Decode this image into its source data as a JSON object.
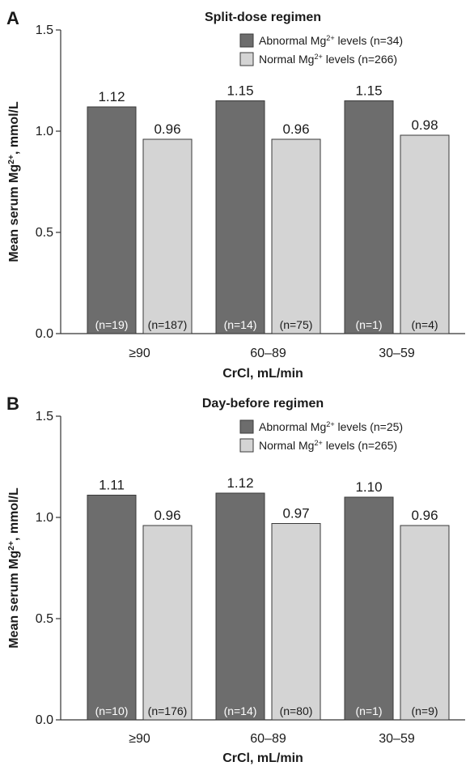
{
  "chart_data": [
    {
      "panel": "A",
      "type": "bar",
      "title": "Split-dose regimen",
      "xlabel": "CrCl, mL/min",
      "ylabel": "Mean serum Mg²⁺, mmol/L",
      "ylim": [
        0,
        1.5
      ],
      "yticks": [
        "0.0",
        "0.5",
        "1.0",
        "1.5"
      ],
      "categories": [
        "≥90",
        "60–89",
        "30–59"
      ],
      "legend_position": "top-right",
      "series": [
        {
          "name": "Abnormal Mg²⁺ levels (n=34)",
          "color": "#6d6d6d",
          "values": [
            1.12,
            1.15,
            1.15
          ],
          "labels": [
            "1.12",
            "1.15",
            "1.15"
          ],
          "n": [
            "(n=19)",
            "(n=14)",
            "(n=1)"
          ]
        },
        {
          "name": "Normal Mg²⁺ levels (n=266)",
          "color": "#d4d4d4",
          "values": [
            0.96,
            0.96,
            0.98
          ],
          "labels": [
            "0.96",
            "0.96",
            "0.98"
          ],
          "n": [
            "(n=187)",
            "(n=75)",
            "(n=4)"
          ]
        }
      ]
    },
    {
      "panel": "B",
      "type": "bar",
      "title": "Day-before regimen",
      "xlabel": "CrCl, mL/min",
      "ylabel": "Mean serum Mg²⁺, mmol/L",
      "ylim": [
        0,
        1.5
      ],
      "yticks": [
        "0.0",
        "0.5",
        "1.0",
        "1.5"
      ],
      "categories": [
        "≥90",
        "60–89",
        "30–59"
      ],
      "legend_position": "top-right",
      "series": [
        {
          "name": "Abnormal Mg²⁺ levels (n=25)",
          "color": "#6d6d6d",
          "values": [
            1.11,
            1.12,
            1.1
          ],
          "labels": [
            "1.11",
            "1.12",
            "1.10"
          ],
          "n": [
            "(n=10)",
            "(n=14)",
            "(n=1)"
          ]
        },
        {
          "name": "Normal Mg²⁺ levels (n=265)",
          "color": "#d4d4d4",
          "values": [
            0.96,
            0.97,
            0.96
          ],
          "labels": [
            "0.96",
            "0.97",
            "0.96"
          ],
          "n": [
            "(n=176)",
            "(n=80)",
            "(n=9)"
          ]
        }
      ]
    }
  ]
}
